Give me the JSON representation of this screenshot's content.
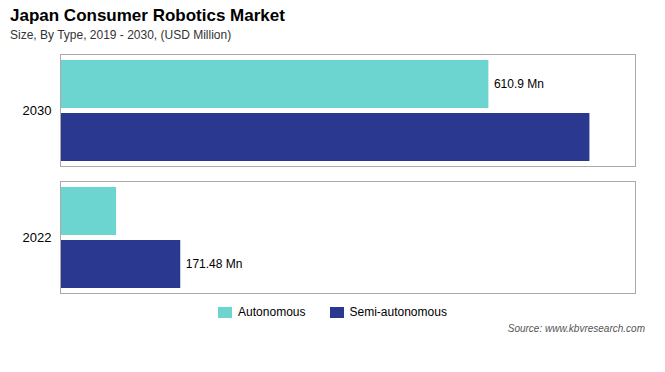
{
  "chart_data": {
    "type": "bar",
    "orientation": "horizontal",
    "title": "Japan Consumer Robotics Market",
    "subtitle": "Size, By Type, 2019 - 2030, (USD Million)",
    "source": "Source: www.kbvresearch.com",
    "categories": [
      "2030",
      "2022"
    ],
    "series": [
      {
        "name": "Autonomous",
        "color": "#6DD5D0",
        "values": [
          610.9,
          80.0
        ],
        "value_labels": [
          "610.9 Mn",
          null
        ]
      },
      {
        "name": "Semi-autonomous",
        "color": "#2B3890",
        "values": [
          755.0,
          171.48
        ],
        "value_labels": [
          null,
          "171.48 Mn"
        ]
      }
    ],
    "xlim": [
      0,
      820
    ],
    "tick_labels": "y",
    "grid": false,
    "legend": "bottom",
    "data_labels": true
  }
}
